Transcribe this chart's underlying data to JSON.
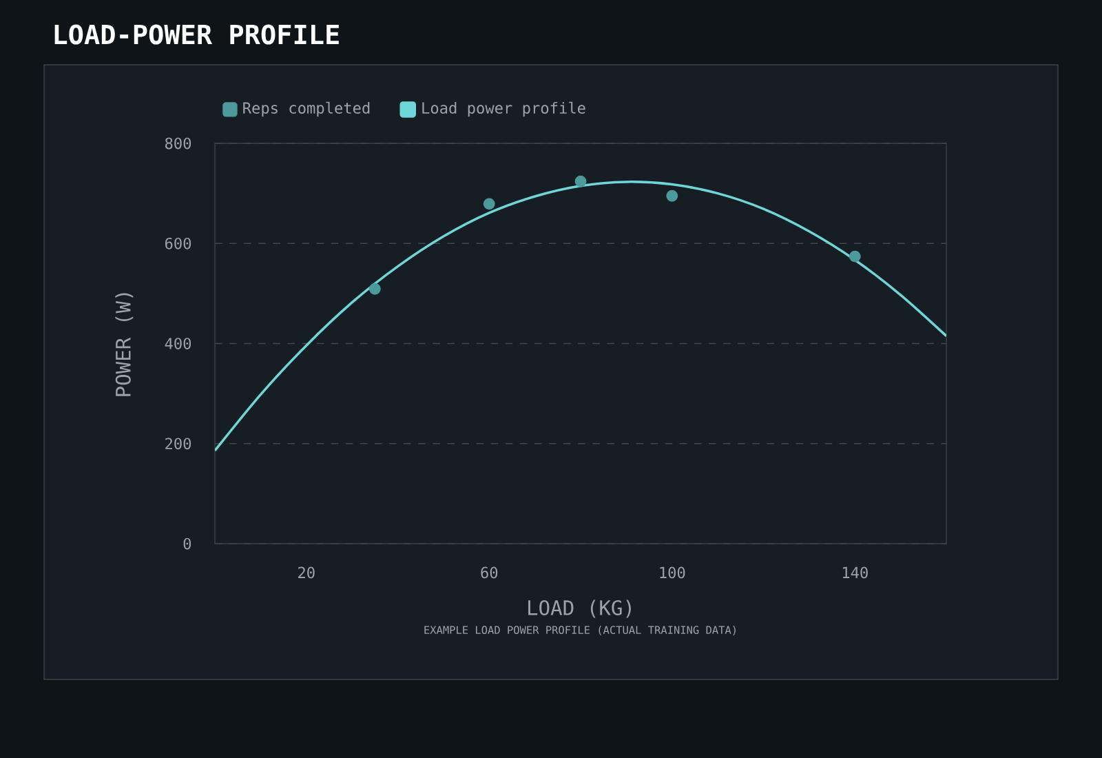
{
  "chart_data": {
    "type": "scatter",
    "title": "LOAD-POWER PROFILE",
    "xlabel": "LOAD (KG)",
    "ylabel": "POWER (W)",
    "annotations": [
      "EXAMPLE LOAD POWER PROFILE (ACTUAL TRAINING DATA)"
    ],
    "xlim": [
      0,
      160
    ],
    "ylim": [
      0,
      800
    ],
    "xticks": [
      20,
      60,
      100,
      140
    ],
    "yticks": [
      0,
      200,
      400,
      600,
      800
    ],
    "grid": "y",
    "legend": "top left",
    "series": [
      {
        "name": "Reps completed",
        "marker": "circle",
        "color": "#4d9a9c",
        "x": [
          35,
          60,
          80,
          100,
          140
        ],
        "values": [
          509,
          679,
          724,
          695,
          574
        ]
      },
      {
        "name": "Load power profile",
        "type": "line",
        "color": "#6fd6d8",
        "x": [
          0,
          10,
          20,
          30,
          40,
          50,
          60,
          70,
          80,
          90,
          100,
          110,
          120,
          130,
          140,
          150,
          160
        ],
        "values": [
          186,
          298,
          396,
          482,
          554,
          614,
          661,
          694,
          715,
          723,
          718,
          700,
          669,
          624,
          567,
          497,
          415
        ]
      }
    ]
  }
}
